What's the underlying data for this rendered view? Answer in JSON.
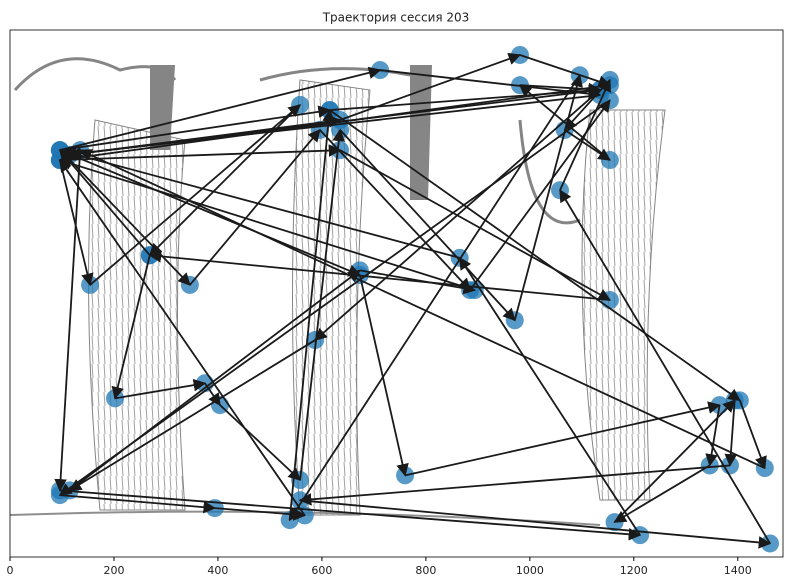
{
  "chart_data": {
    "type": "trajectory",
    "title": "Траектория сессия 203",
    "xlim": [
      0,
      1487
    ],
    "ylim": [
      1013,
      0
    ],
    "xticks": [
      0,
      200,
      400,
      600,
      800,
      1000,
      1200,
      1400
    ],
    "color": "#1f77b4",
    "arrow_color": "#1a1a1a",
    "x": [
      96,
      615,
      1135,
      115,
      635,
      981,
      1154,
      96,
      154,
      558,
      269,
      96,
      712,
      1135,
      106,
      346,
      596,
      885,
      1154,
      96,
      394,
      567,
      96,
      635,
      1154,
      269,
      202,
      375,
      404,
      558,
      635,
      971,
      1096,
      538,
      615,
      1404,
      1452,
      135,
      96,
      1212,
      865,
      96,
      673,
      760,
      1365,
      1346,
      1163,
      1394,
      1385,
      558,
      1462,
      1058,
      1154,
      1067,
      1154,
      981,
      1135,
      587,
      115,
      673,
      894,
      96
    ],
    "y": [
      231,
      154,
      115,
      240,
      173,
      48,
      106,
      250,
      490,
      144,
      433,
      231,
      77,
      125,
      240,
      490,
      192,
      500,
      135,
      894,
      919,
      933,
      250,
      231,
      519,
      433,
      708,
      679,
      721,
      865,
      192,
      558,
      87,
      942,
      154,
      712,
      842,
      231,
      885,
      971,
      438,
      231,
      471,
      856,
      721,
      837,
      946,
      712,
      837,
      904,
      987,
      308,
      96,
      192,
      250,
      106,
      115,
      596,
      885,
      462,
      500,
      250
    ]
  }
}
